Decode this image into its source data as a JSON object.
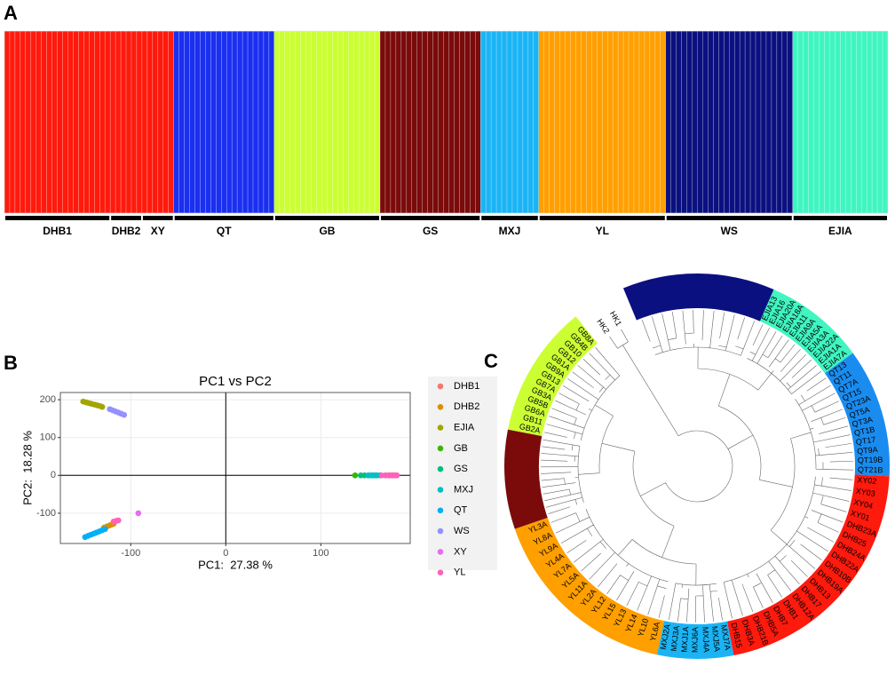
{
  "chart_data": [
    {
      "type": "structure",
      "panel": "A",
      "groups": [
        {
          "name": "DHB1",
          "color": "#fe1a0d",
          "count": 20
        },
        {
          "name": "DHB2",
          "color": "#fe1a0d",
          "count": 6
        },
        {
          "name": "XY",
          "color": "#fe1a0d",
          "count": 6
        },
        {
          "name": "QT",
          "color": "#1a2ff0",
          "count": 19
        },
        {
          "name": "GB",
          "color": "#ccff33",
          "count": 20
        },
        {
          "name": "GS",
          "color": "#7b0b0b",
          "count": 19
        },
        {
          "name": "MXJ",
          "color": "#1ab4f5",
          "count": 11
        },
        {
          "name": "YL",
          "color": "#ff9f00",
          "count": 24
        },
        {
          "name": "WS",
          "color": "#0b1080",
          "count": 24
        },
        {
          "name": "EJIA",
          "color": "#40f5c0",
          "count": 18
        }
      ]
    },
    {
      "type": "scatter",
      "panel": "B",
      "title": "PC1 vs PC2",
      "x_label": "PC1:  27.38 %",
      "y_label": "PC2:  18.28 %",
      "xlim": [
        -174,
        194
      ],
      "ylim": [
        -180,
        219
      ],
      "xticks": [
        -100,
        0,
        100
      ],
      "yticks": [
        -100,
        0,
        100,
        200
      ],
      "grid": true,
      "series": [
        {
          "name": "DHB1",
          "color": "#F8766D",
          "x": [
            168,
            171,
            173,
            175,
            177,
            179
          ],
          "y": [
            0,
            0,
            0,
            0,
            0,
            0
          ]
        },
        {
          "name": "DHB2",
          "color": "#D89000",
          "x": [
            -128,
            -125,
            -122,
            -120,
            -118
          ],
          "y": [
            -138,
            -135,
            -132,
            -130,
            -128
          ]
        },
        {
          "name": "EJIA",
          "color": "#A3A500",
          "x": [
            -150,
            -147,
            -144,
            -141,
            -138,
            -135,
            -132,
            -130
          ],
          "y": [
            195,
            193,
            191,
            189,
            187,
            185,
            183,
            181
          ]
        },
        {
          "name": "GB",
          "color": "#39B600",
          "x": [
            136
          ],
          "y": [
            0
          ]
        },
        {
          "name": "GS",
          "color": "#00BF7D",
          "x": [
            142,
            146,
            150,
            154,
            158,
            162
          ],
          "y": [
            0,
            0,
            0,
            0,
            0,
            0
          ]
        },
        {
          "name": "MXJ",
          "color": "#00BFC4",
          "x": [
            150,
            153,
            156,
            159
          ],
          "y": [
            0,
            0,
            0,
            0
          ]
        },
        {
          "name": "QT",
          "color": "#00B0F6",
          "x": [
            -148,
            -145,
            -142,
            -139,
            -136,
            -133,
            -130,
            -127
          ],
          "y": [
            -163,
            -160,
            -157,
            -154,
            -151,
            -148,
            -145,
            -142
          ]
        },
        {
          "name": "WS",
          "color": "#9590FF",
          "x": [
            -122,
            -119,
            -116,
            -113,
            -110,
            -107
          ],
          "y": [
            175,
            172,
            169,
            166,
            163,
            160
          ]
        },
        {
          "name": "XY",
          "color": "#E76BF3",
          "x": [
            -92
          ],
          "y": [
            -100
          ]
        },
        {
          "name": "YL",
          "color": "#FF62BC",
          "x": [
            -118,
            -115,
            -113,
            164,
            168,
            172,
            176,
            180
          ],
          "y": [
            -122,
            -120,
            -119,
            0,
            0,
            0,
            0,
            0
          ]
        }
      ]
    },
    {
      "type": "dendrogram",
      "panel": "C",
      "clades": [
        {
          "color": "#0b1080",
          "labels": []
        },
        {
          "color": "#40f5c0",
          "labels": [
            "EJIA13",
            "EJIA16",
            "EJIA20A",
            "EJIA18A",
            "EJIA11",
            "EJIA9A",
            "EJIA5A",
            "EJIA3A",
            "EJIA22A",
            "EJIA1A",
            "EJIA7A"
          ]
        },
        {
          "color": "#1a8cf0",
          "labels": [
            "QT13",
            "QT11",
            "QT7A",
            "QT15",
            "QT23A",
            "QT5A",
            "QT3A",
            "QT1B",
            "QT17",
            "QT9A",
            "QT19B",
            "QT21B"
          ]
        },
        {
          "color": "#fe1a0d",
          "labels": [
            "XY02",
            "XY03",
            "XY04",
            "XY01",
            "DHB23A",
            "DHB25",
            "DHB24A",
            "DHB22A",
            "DHB10B",
            "DHB19A",
            "DHB13",
            "DHB17",
            "DHB12A",
            "DHB1",
            "DHB7",
            "DHB5A",
            "DHB21B",
            "DHB3A",
            "DHB15"
          ]
        },
        {
          "color": "#1ab4f5",
          "labels": [
            "MXJ7A",
            "MXJ5A",
            "MXJ4A",
            "MXJ6A",
            "MXJ1A",
            "MXJ3A",
            "MXJ2A"
          ]
        },
        {
          "color": "#ff9f00",
          "labels": [
            "YL6A",
            "YL10",
            "YL14",
            "YL13",
            "YL15",
            "YL12",
            "YL2A",
            "YL11A",
            "YL5A",
            "YL7A",
            "YL4A",
            "YL9A",
            "YL8A",
            "YL3A"
          ]
        },
        {
          "color": "#7b0b0b",
          "labels": []
        },
        {
          "color": "#ccff33",
          "labels": [
            "GB2A",
            "GB11",
            "GB6A",
            "GB5B",
            "GB3A",
            "GB7A",
            "GB13",
            "GB9A",
            "GB1A",
            "GB12",
            "GB10",
            "GB4B",
            "GB8A"
          ]
        }
      ],
      "outgroup_labels": [
        "HK2",
        "HK1"
      ]
    }
  ]
}
